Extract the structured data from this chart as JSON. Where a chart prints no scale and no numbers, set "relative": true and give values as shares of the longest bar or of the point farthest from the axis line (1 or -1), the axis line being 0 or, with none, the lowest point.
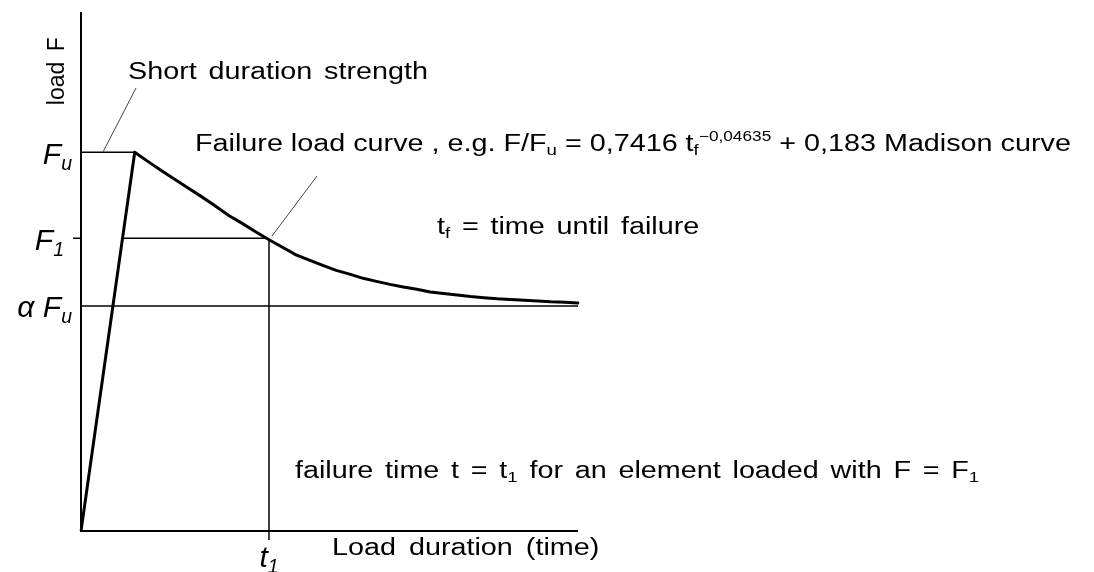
{
  "chart_data": {
    "type": "line",
    "relative": true,
    "xlabel": "Load duration (time)",
    "ylabel": "load F",
    "categories": [
      null,
      null,
      null,
      null,
      null,
      null,
      null,
      null,
      null,
      null,
      null,
      null,
      null,
      null,
      null,
      null,
      null,
      null,
      null,
      null,
      null,
      null,
      null,
      null,
      null,
      null,
      null,
      null,
      null,
      null,
      null,
      null,
      null,
      null,
      null,
      null,
      null,
      null
    ],
    "series": [
      {
        "color": "#000000",
        "values": [
          0,
          0.25,
          0.5,
          0.75,
          1,
          0.975,
          0.951,
          0.928,
          0.905,
          0.882,
          0.858,
          0.833,
          0.812,
          0.79,
          0.769,
          0.749,
          0.729,
          0.715,
          0.701,
          0.688,
          0.678,
          0.667,
          0.659,
          0.651,
          0.644,
          0.638,
          0.631,
          0.627,
          0.623,
          0.619,
          0.616,
          0.613,
          0.611,
          0.609,
          0.607,
          0.605,
          0.604,
          0.602
        ]
      }
    ],
    "ref_lines": [
      {
        "axis": "y",
        "value": 1,
        "label": "F$_{u}$"
      },
      {
        "axis": "y",
        "value": 0.773,
        "label": "F$_{1}$"
      },
      {
        "axis": "y",
        "value": 0.594,
        "label": "α F$_{u}$"
      }
    ],
    "annotations": [
      "Short duration strength",
      "Failure load curve , e.g. F/F$_{u}$ = 0,7416 t$_{f}$$^{−0,04635}$ + 0,183 Madison curve",
      "t$_{f}$ = time until failure",
      "failure time t = t$_{1}$ for an element loaded with F = F$_{1}$",
      "t$_{1}$"
    ]
  }
}
